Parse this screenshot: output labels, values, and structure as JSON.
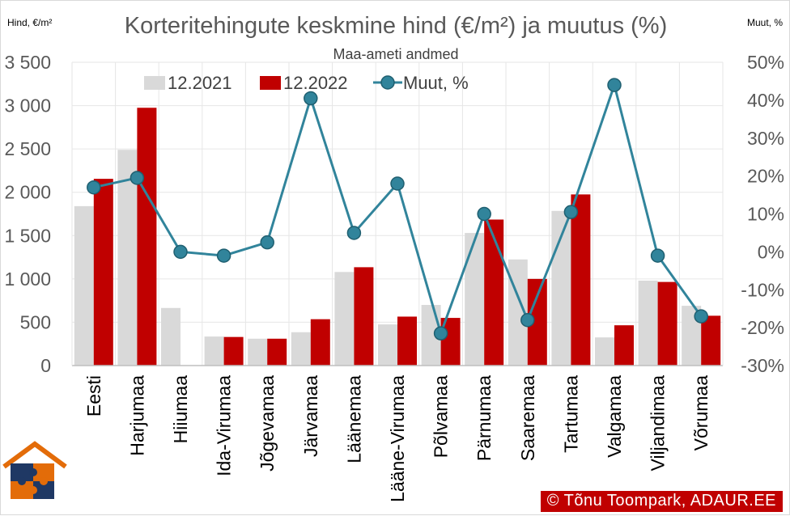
{
  "chart_data": {
    "type": "bar",
    "title": "Korteritehingute keskmine hind (€/m²) ja muutus (%)",
    "subtitle": "Maa-ameti andmed",
    "ylabel": "Hind, €/m²",
    "y2label": "Muut, %",
    "ylim": [
      0,
      3500
    ],
    "y2lim": [
      -30,
      50
    ],
    "y_ticks": [
      "0",
      "500",
      "1 000",
      "1 500",
      "2 000",
      "2 500",
      "3 000",
      "3 500"
    ],
    "y2_ticks": [
      "-30%",
      "-20%",
      "-10%",
      "0%",
      "10%",
      "20%",
      "30%",
      "40%",
      "50%"
    ],
    "grid": true,
    "legend_position": "top",
    "categories": [
      "Eesti",
      "Harjumaa",
      "Hiiumaa",
      "Ida-Virumaa",
      "Jõgevamaa",
      "Järvamaa",
      "Läänemaa",
      "Lääne-Virumaa",
      "Põlvamaa",
      "Pärnumaa",
      "Saaremaa",
      "Tartumaa",
      "Valgamaa",
      "Viljandimaa",
      "Võrumaa"
    ],
    "series": [
      {
        "name": "12.2021",
        "type": "bar",
        "axis": "left",
        "color": "#d9d9d9",
        "values": [
          1840,
          2490,
          665,
          335,
          310,
          385,
          1080,
          475,
          700,
          1530,
          1225,
          1785,
          325,
          980,
          690
        ]
      },
      {
        "name": "12.2022",
        "type": "bar",
        "axis": "left",
        "color": "#c00000",
        "values": [
          2155,
          2975,
          0,
          330,
          310,
          535,
          1135,
          565,
          550,
          1685,
          1000,
          1975,
          465,
          965,
          575
        ]
      },
      {
        "name": "Muut, %",
        "type": "line",
        "axis": "right",
        "color": "#31849b",
        "values": [
          17,
          19.5,
          0,
          -1,
          2.5,
          40.5,
          5,
          18,
          -21.5,
          10,
          -18,
          10.5,
          44,
          -1,
          -17
        ]
      }
    ]
  },
  "credit": "© Tõnu Toompark, ADAUR.EE",
  "logo": "ADAUR house puzzle logo"
}
